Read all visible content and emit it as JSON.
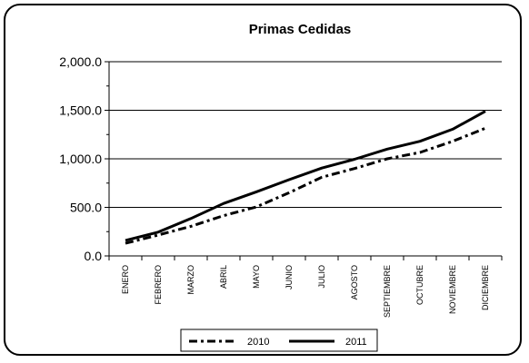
{
  "chart_data": {
    "type": "line",
    "title": "Primas Cedidas",
    "xlabel": "",
    "ylabel": "",
    "categories": [
      "ENERO",
      "FEBRERO",
      "MARZO",
      "ABRIL",
      "MAYO",
      "JUNIO",
      "JULIO",
      "AGOSTO",
      "SEPTIEMBRE",
      "OCTUBRE",
      "NOVIEMBRE",
      "DICIEMBRE"
    ],
    "ylim": [
      0,
      2000
    ],
    "yticks": [
      0,
      500,
      1000,
      1500,
      2000
    ],
    "ytick_labels": [
      "0.0",
      "500.0",
      "1,000.0",
      "1,500.0",
      "2,000.0"
    ],
    "grid": "horizontal",
    "legend_position": "bottom",
    "series": [
      {
        "name": "2010",
        "style": "dash-dot",
        "color": "#000000",
        "values": [
          130,
          215,
          305,
          415,
          505,
          650,
          810,
          900,
          1000,
          1065,
          1180,
          1315
        ]
      },
      {
        "name": "2011",
        "style": "solid",
        "color": "#000000",
        "values": [
          160,
          245,
          385,
          540,
          660,
          785,
          905,
          995,
          1100,
          1180,
          1305,
          1490
        ]
      }
    ]
  }
}
